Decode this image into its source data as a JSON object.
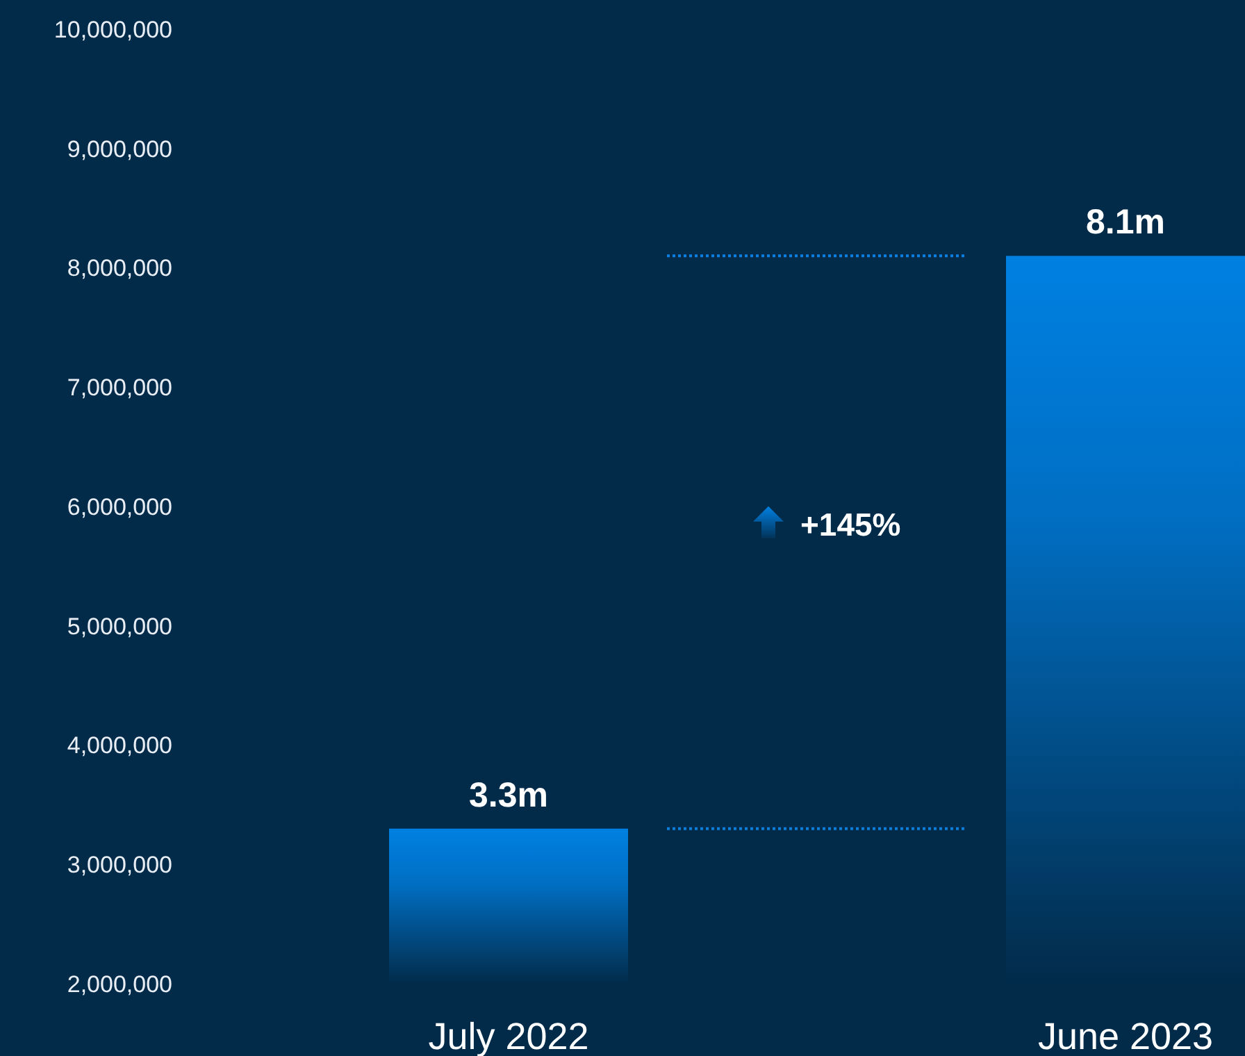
{
  "chart_data": {
    "type": "bar",
    "categories": [
      "July 2022",
      "June 2023"
    ],
    "values": [
      3300000,
      8100000
    ],
    "value_labels": [
      "3.3m",
      "8.1m"
    ],
    "color": "#0080e2",
    "ylim": [
      2000000,
      10000000
    ],
    "yticks": [
      {
        "value": 2000000,
        "label": "2,000,000"
      },
      {
        "value": 3000000,
        "label": "3,000,000"
      },
      {
        "value": 4000000,
        "label": "4,000,000"
      },
      {
        "value": 5000000,
        "label": "5,000,000"
      },
      {
        "value": 6000000,
        "label": "6,000,000"
      },
      {
        "value": 7000000,
        "label": "7,000,000"
      },
      {
        "value": 8000000,
        "label": "8,000,000"
      },
      {
        "value": 9000000,
        "label": "9,000,000"
      },
      {
        "value": 10000000,
        "label": "10,000,000"
      }
    ],
    "ref_lines": [
      {
        "axis": "y",
        "value": 8100000,
        "color": "#0a7fe0",
        "line_style": "dotted"
      },
      {
        "axis": "y",
        "value": 3300000,
        "color": "#0a7fe0",
        "line_style": "dotted"
      }
    ],
    "annotations": [
      "+145%"
    ],
    "grid": false
  }
}
